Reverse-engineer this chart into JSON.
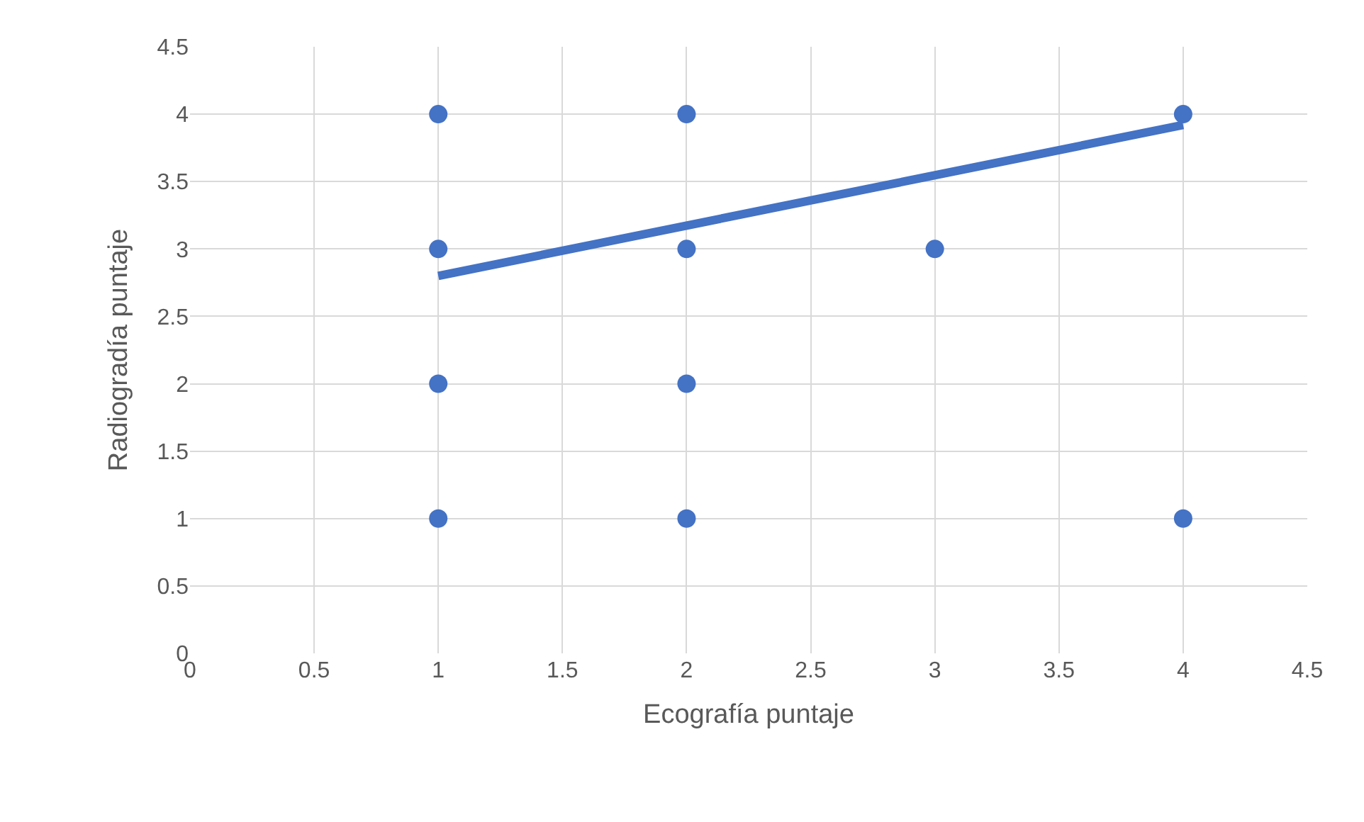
{
  "chart_data": {
    "type": "scatter",
    "xlabel": "Ecografía puntaje",
    "ylabel": "Radiogradía puntaje",
    "series": [
      {
        "color": "#4472c4",
        "marker": "circle",
        "x": [
          1,
          1,
          1,
          1,
          2,
          2,
          2,
          2,
          3,
          4,
          4
        ],
        "values": [
          4,
          3,
          2,
          1,
          4,
          3,
          2,
          1,
          3,
          4,
          1
        ]
      },
      {
        "type": "line",
        "color": "#4472c4",
        "x": [
          1,
          4
        ],
        "values": [
          2.8,
          3.92
        ]
      }
    ],
    "xlim": [
      0,
      4.5
    ],
    "xticks": [
      0,
      0.5,
      1,
      1.5,
      2,
      2.5,
      3,
      3.5,
      4,
      4.5
    ],
    "ylim": [
      0,
      4.5
    ],
    "yticks": [
      0,
      0.5,
      1,
      1.5,
      2,
      2.5,
      3,
      3.5,
      4,
      4.5
    ],
    "grid": true
  }
}
